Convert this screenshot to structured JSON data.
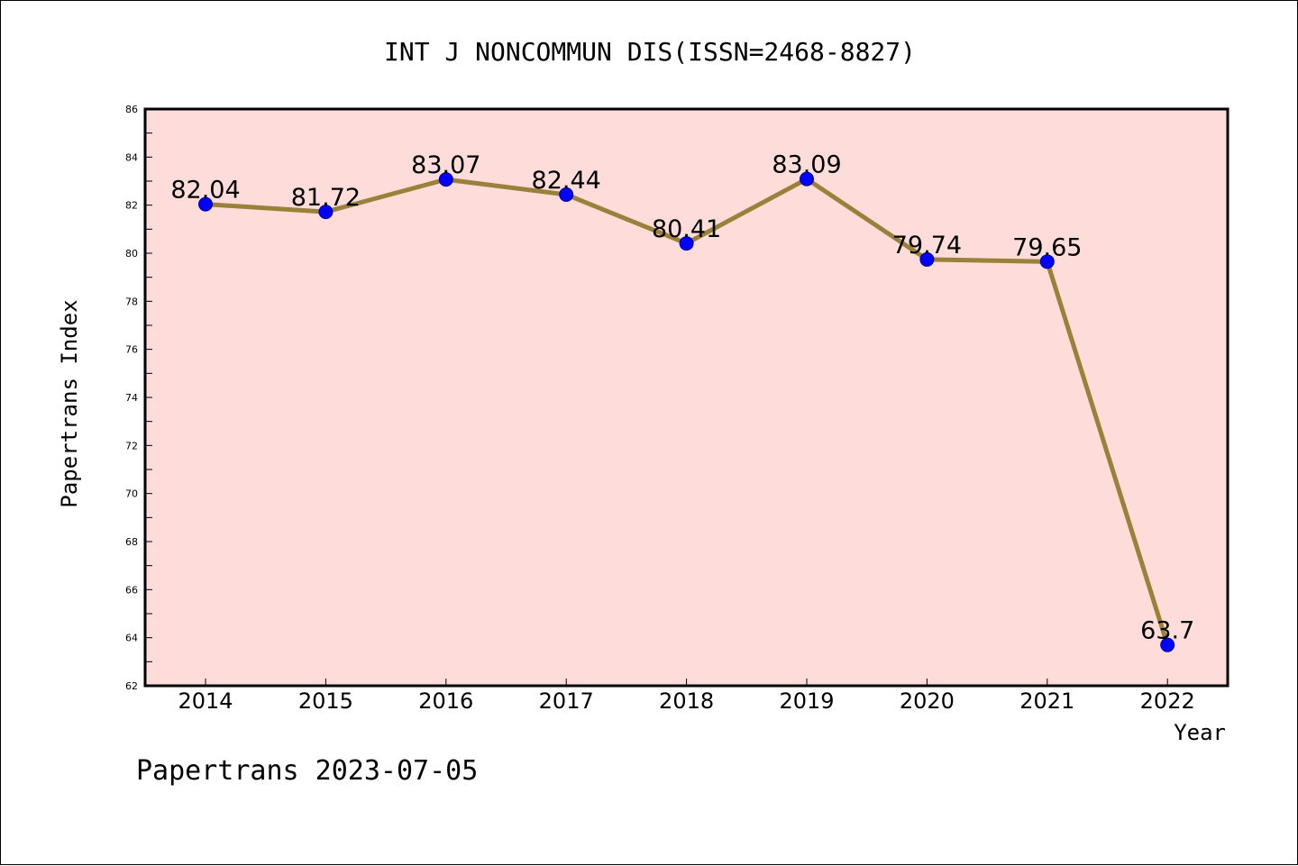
{
  "chart_data": {
    "type": "line",
    "title": "INT J NONCOMMUN DIS(ISSN=2468-8827)",
    "xlabel": "Year",
    "ylabel": "Papertrans Index",
    "categories": [
      "2014",
      "2015",
      "2016",
      "2017",
      "2018",
      "2019",
      "2020",
      "2021",
      "2022"
    ],
    "series": [
      {
        "name": "Papertrans Index",
        "values": [
          82.04,
          81.72,
          83.07,
          82.44,
          80.41,
          83.09,
          79.74,
          79.65,
          63.7
        ],
        "labels": [
          "82.04",
          "81.72",
          "83.07",
          "82.44",
          "80.41",
          "83.09",
          "79.74",
          "79.65",
          "63.7"
        ]
      }
    ],
    "ylim": [
      62,
      86
    ],
    "yticks": [
      "62",
      "64",
      "66",
      "68",
      "70",
      "72",
      "74",
      "76",
      "78",
      "80",
      "82",
      "84",
      "86"
    ],
    "grid": false,
    "footer": "Papertrans 2023-07-05"
  },
  "colors": {
    "plot_background": "#FDDCDA",
    "line": "#9A8038",
    "marker": "#0000FF",
    "marker_edge": "#00008B",
    "axis": "#000000"
  }
}
